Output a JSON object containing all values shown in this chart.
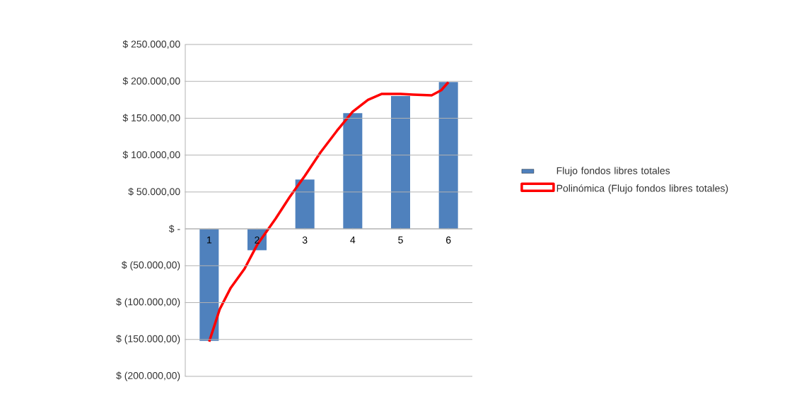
{
  "chart_data": {
    "type": "bar",
    "xlim": [
      0.5,
      6.5
    ],
    "xticks": [
      1,
      2,
      3,
      4,
      5,
      6
    ],
    "ylim": [
      -200000,
      250000
    ],
    "yticks": [
      {
        "value": -200000,
        "label": "$ (200.000,00)"
      },
      {
        "value": -150000,
        "label": "$ (150.000,00)"
      },
      {
        "value": -100000,
        "label": "$ (100.000,00)"
      },
      {
        "value": -50000,
        "label": "$ (50.000,00)"
      },
      {
        "value": 0,
        "label": "$ -"
      },
      {
        "value": 50000,
        "label": "$ 50.000,00"
      },
      {
        "value": 100000,
        "label": "$ 100.000,00"
      },
      {
        "value": 150000,
        "label": "$ 150.000,00"
      },
      {
        "value": 200000,
        "label": "$ 200.000,00"
      },
      {
        "value": 250000,
        "label": "$ 250.000,00"
      }
    ],
    "series": [
      {
        "name": "Flujo fondos libres totales",
        "color": "#4f81bd",
        "x": [
          1,
          2,
          3,
          4,
          5,
          6
        ],
        "values": [
          -152000,
          -29000,
          67000,
          157000,
          180000,
          199000
        ]
      },
      {
        "name": "Polinómica (Flujo fondos libres totales)",
        "type": "line",
        "color": "#ff0000",
        "x": [
          1,
          1.22,
          1.45,
          1.74,
          2,
          2.39,
          2.68,
          3,
          3.33,
          3.67,
          4,
          4.32,
          4.61,
          5,
          5.26,
          5.65,
          5.85,
          6
        ],
        "values": [
          -153000,
          -109000,
          -80000,
          -54000,
          -22000,
          14000,
          43000,
          72000,
          104000,
          133000,
          159000,
          175000,
          183000,
          183000,
          182000,
          181000,
          188000,
          199000
        ]
      }
    ],
    "grid": "y",
    "legend": "right",
    "marker": "none",
    "line_style": "solid"
  }
}
